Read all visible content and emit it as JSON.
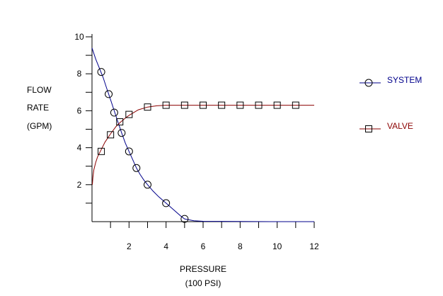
{
  "chart_data": {
    "type": "line",
    "title": "",
    "ylabel": [
      "FLOW",
      "RATE",
      "(GPM)"
    ],
    "xlabel": [
      "PRESSURE",
      "(100 PSI)"
    ],
    "xlim": [
      0,
      12
    ],
    "ylim": [
      0,
      10
    ],
    "x_ticks": [
      2,
      4,
      6,
      8,
      10,
      12
    ],
    "y_ticks": [
      2,
      4,
      6,
      8,
      10
    ],
    "grid": false,
    "legend_position": "right",
    "series": [
      {
        "name": "SYSTEM",
        "color": "#00008b",
        "marker": "circle",
        "x": [
          0.5,
          0.9,
          1.2,
          1.6,
          2.0,
          2.4,
          3.0,
          4.0,
          5.0
        ],
        "y": [
          8.1,
          6.9,
          5.9,
          4.8,
          3.8,
          2.9,
          2.0,
          1.0,
          0.15
        ],
        "curve_x": [
          0.0,
          0.2,
          0.4,
          0.6,
          0.8,
          1.0,
          1.2,
          1.4,
          1.6,
          1.8,
          2.0,
          2.2,
          2.4,
          2.6,
          2.8,
          3.0,
          3.3,
          3.6,
          4.0,
          4.4,
          4.8,
          5.0,
          5.5,
          6.0,
          8.0,
          10.0,
          12.0
        ],
        "curve_y": [
          9.4,
          8.8,
          8.3,
          7.8,
          7.2,
          6.6,
          6.0,
          5.4,
          4.8,
          4.25,
          3.8,
          3.35,
          2.9,
          2.55,
          2.25,
          2.0,
          1.65,
          1.35,
          1.0,
          0.65,
          0.3,
          0.15,
          0.05,
          0.02,
          0.01,
          0.0,
          0.0
        ]
      },
      {
        "name": "VALVE",
        "color": "#8b0000",
        "marker": "square",
        "x": [
          0.5,
          1.0,
          1.5,
          2.0,
          3.0,
          4.0,
          5.0,
          6.0,
          7.0,
          8.0,
          9.0,
          10.0,
          11.0
        ],
        "y": [
          3.8,
          4.7,
          5.4,
          5.8,
          6.2,
          6.3,
          6.3,
          6.3,
          6.3,
          6.3,
          6.3,
          6.3,
          6.3
        ],
        "curve_x": [
          0.02,
          0.05,
          0.1,
          0.2,
          0.3,
          0.5,
          0.7,
          1.0,
          1.3,
          1.5,
          1.8,
          2.0,
          2.5,
          3.0,
          3.5,
          4.0,
          5.0,
          8.0,
          12.0
        ],
        "curve_y": [
          2.0,
          2.4,
          2.8,
          3.2,
          3.5,
          3.9,
          4.3,
          4.75,
          5.15,
          5.35,
          5.6,
          5.75,
          6.05,
          6.2,
          6.27,
          6.3,
          6.3,
          6.3,
          6.3
        ]
      }
    ]
  }
}
